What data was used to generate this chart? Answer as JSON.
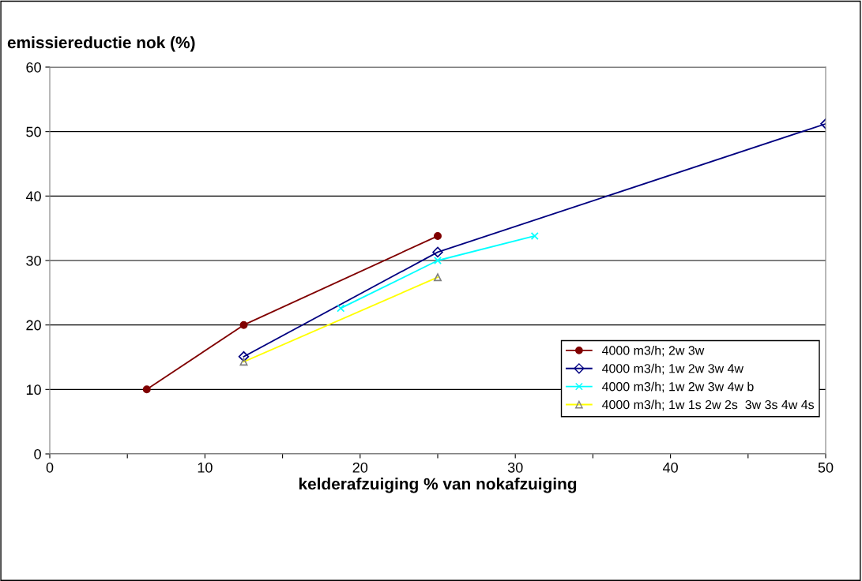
{
  "chart_data": {
    "type": "line",
    "ylabel": "emissiereductie nok (%)",
    "xlabel": "kelderafzuiging % van nokafzuiging",
    "series": [
      {
        "name": "4000 m3/h; 2w 3w",
        "color": "#800000",
        "marker": "circle",
        "x": [
          6.25,
          12.5,
          25
        ],
        "values": [
          10,
          20,
          33.8
        ]
      },
      {
        "name": "4000 m3/h; 1w 2w 3w 4w",
        "color": "#000080",
        "marker": "diamond",
        "x": [
          12.5,
          25,
          50
        ],
        "values": [
          15.1,
          31.3,
          51.2
        ]
      },
      {
        "name": "4000 m3/h; 1w 2w 3w 4w b",
        "color": "#00ffff",
        "marker": "cross",
        "x": [
          18.75,
          25,
          31.25
        ],
        "values": [
          22.6,
          30,
          33.8
        ]
      },
      {
        "name": "4000 m3/h; 1w 1s 2w 2s  3w 3s 4w 4s",
        "color": "#ffff00",
        "marker": "triangle",
        "x": [
          12.5,
          25
        ],
        "values": [
          14.3,
          27.4
        ]
      }
    ],
    "xlim": [
      0,
      50
    ],
    "ylim": [
      0,
      60
    ],
    "xticks": [
      0,
      {
        "value": 5,
        "label": null
      },
      10,
      {
        "value": 15,
        "label": null
      },
      20,
      {
        "value": 25,
        "label": null
      },
      30,
      {
        "value": 35,
        "label": null
      },
      40,
      {
        "value": 45,
        "label": null
      },
      50
    ],
    "yticks": [
      0,
      10,
      20,
      30,
      40,
      50,
      60
    ],
    "grid": "y",
    "legend": "bottom right",
    "line_style": "solid"
  }
}
